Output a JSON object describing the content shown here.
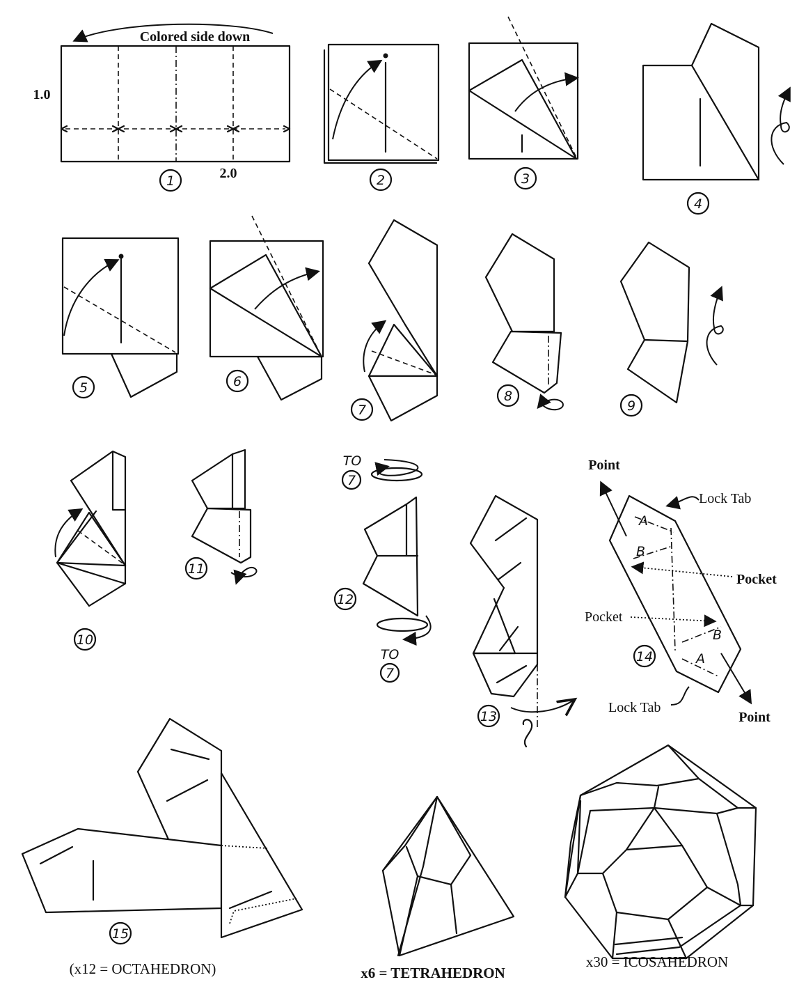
{
  "diagram": {
    "top_instruction": "Colored side down",
    "dimension_height": "1.0",
    "dimension_width": "2.0",
    "steps": [
      "1",
      "2",
      "3",
      "4",
      "5",
      "6",
      "7",
      "8",
      "9",
      "10",
      "11",
      "12",
      "13",
      "14",
      "15"
    ],
    "refer_to": "TO",
    "refer_step": "7",
    "labels": {
      "point": "Point",
      "lock_tab": "Lock Tab",
      "pocket": "Pocket",
      "mark_a": "A",
      "mark_b": "B"
    },
    "captions": {
      "octahedron": "(x12 = OCTAHEDRON)",
      "tetrahedron": "x6  = TETRAHEDRON",
      "icosahedron": "x30 = ICOSAHEDRON"
    }
  }
}
